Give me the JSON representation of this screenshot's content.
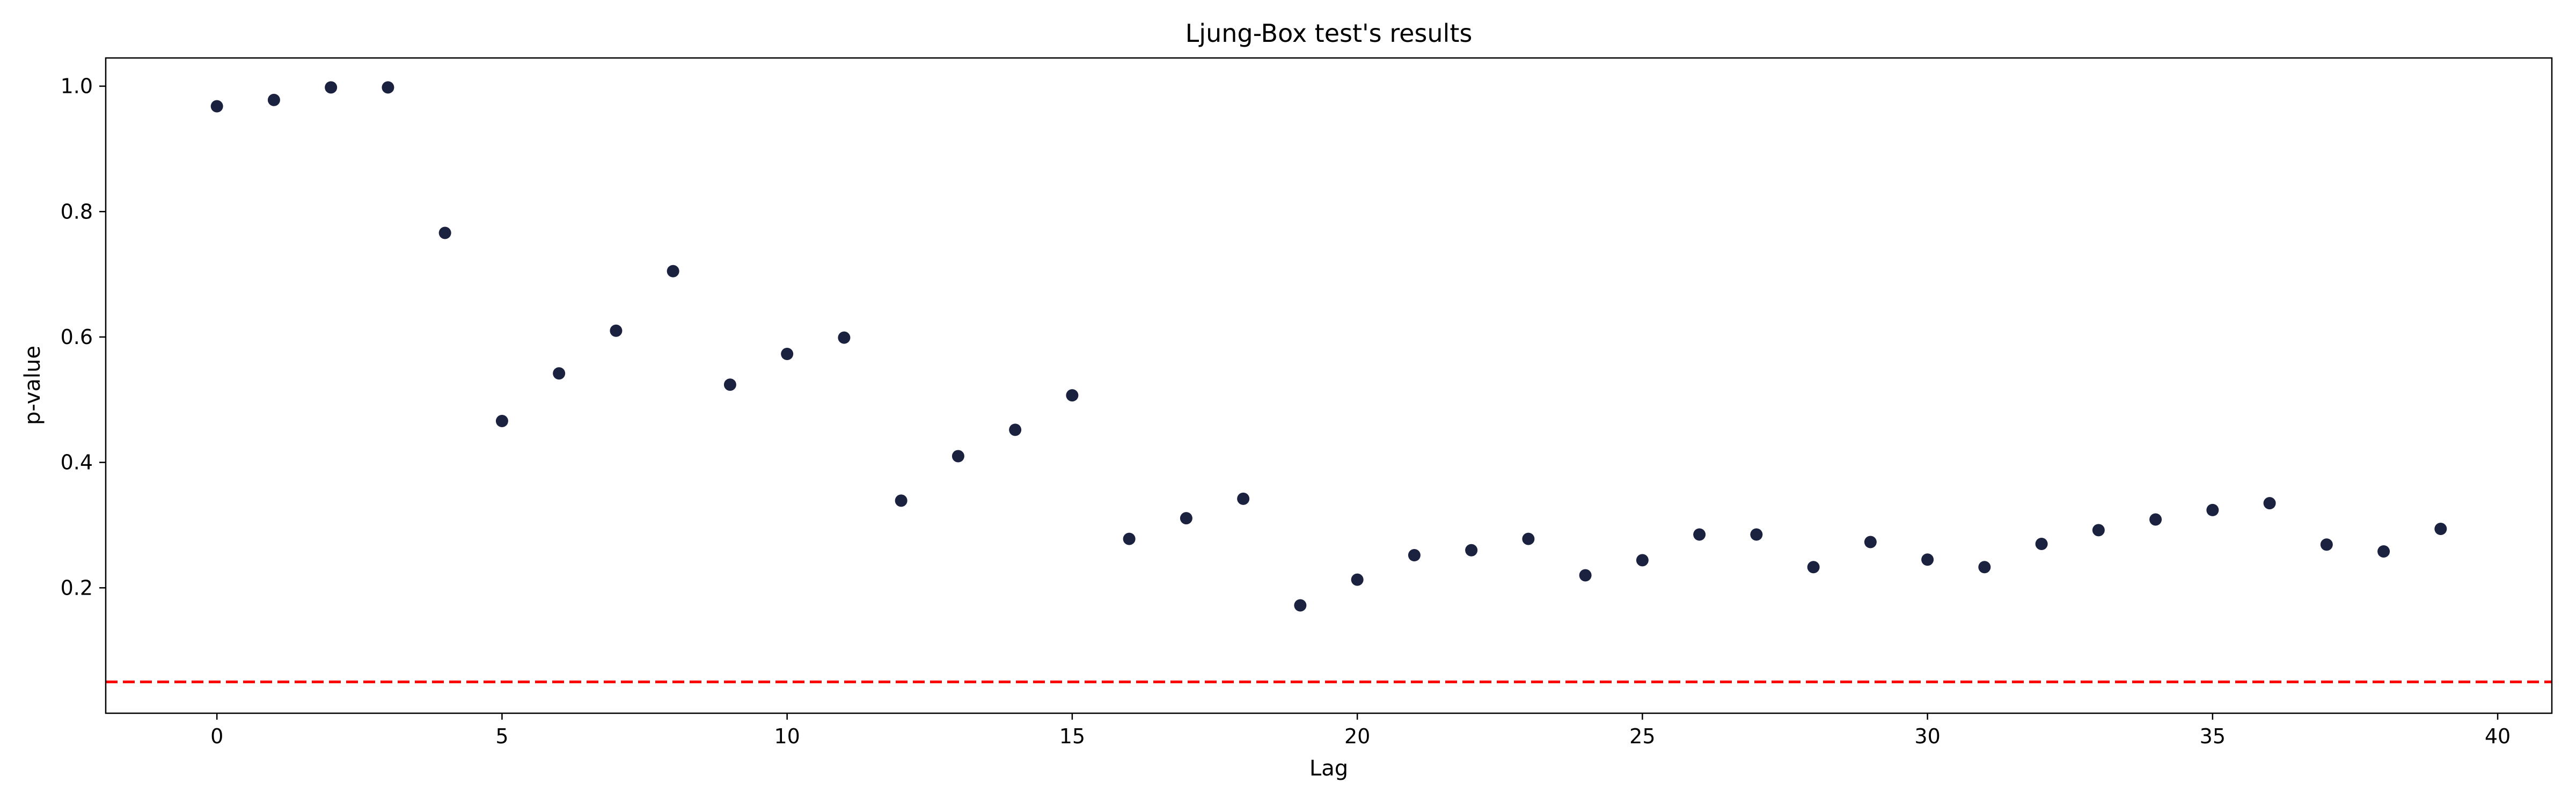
{
  "chart_data": {
    "type": "scatter",
    "title": "Ljung-Box test's results",
    "xlabel": "Lag",
    "ylabel": "p-value",
    "xlim": [
      -1.95,
      40.95
    ],
    "ylim": [
      0.0,
      1.045
    ],
    "xticks": [
      0,
      5,
      10,
      15,
      20,
      25,
      30,
      35,
      40
    ],
    "yticks": [
      0.2,
      0.4,
      0.6,
      0.8,
      1.0
    ],
    "xtick_labels": [
      "0",
      "5",
      "10",
      "15",
      "20",
      "25",
      "30",
      "35",
      "40"
    ],
    "ytick_labels": [
      "0.2",
      "0.4",
      "0.6",
      "0.8",
      "1.0"
    ],
    "grid": false,
    "legend": "none",
    "marker_color": "#1b2240",
    "reference_line": {
      "y": 0.05,
      "style": "dashed",
      "color": "#ff0000"
    },
    "x": [
      0,
      1,
      2,
      3,
      4,
      5,
      6,
      7,
      8,
      9,
      10,
      11,
      12,
      13,
      14,
      15,
      16,
      17,
      18,
      19,
      20,
      21,
      22,
      23,
      24,
      25,
      26,
      27,
      28,
      29,
      30,
      31,
      32,
      33,
      34,
      35,
      36,
      37,
      38,
      39
    ],
    "y": [
      0.968,
      0.978,
      0.998,
      0.998,
      0.766,
      0.466,
      0.542,
      0.61,
      0.705,
      0.524,
      0.573,
      0.599,
      0.339,
      0.41,
      0.452,
      0.507,
      0.278,
      0.311,
      0.342,
      0.172,
      0.213,
      0.252,
      0.26,
      0.278,
      0.22,
      0.244,
      0.285,
      0.285,
      0.233,
      0.273,
      0.245,
      0.233,
      0.27,
      0.292,
      0.309,
      0.324,
      0.335,
      0.269,
      0.258,
      0.294
    ]
  }
}
